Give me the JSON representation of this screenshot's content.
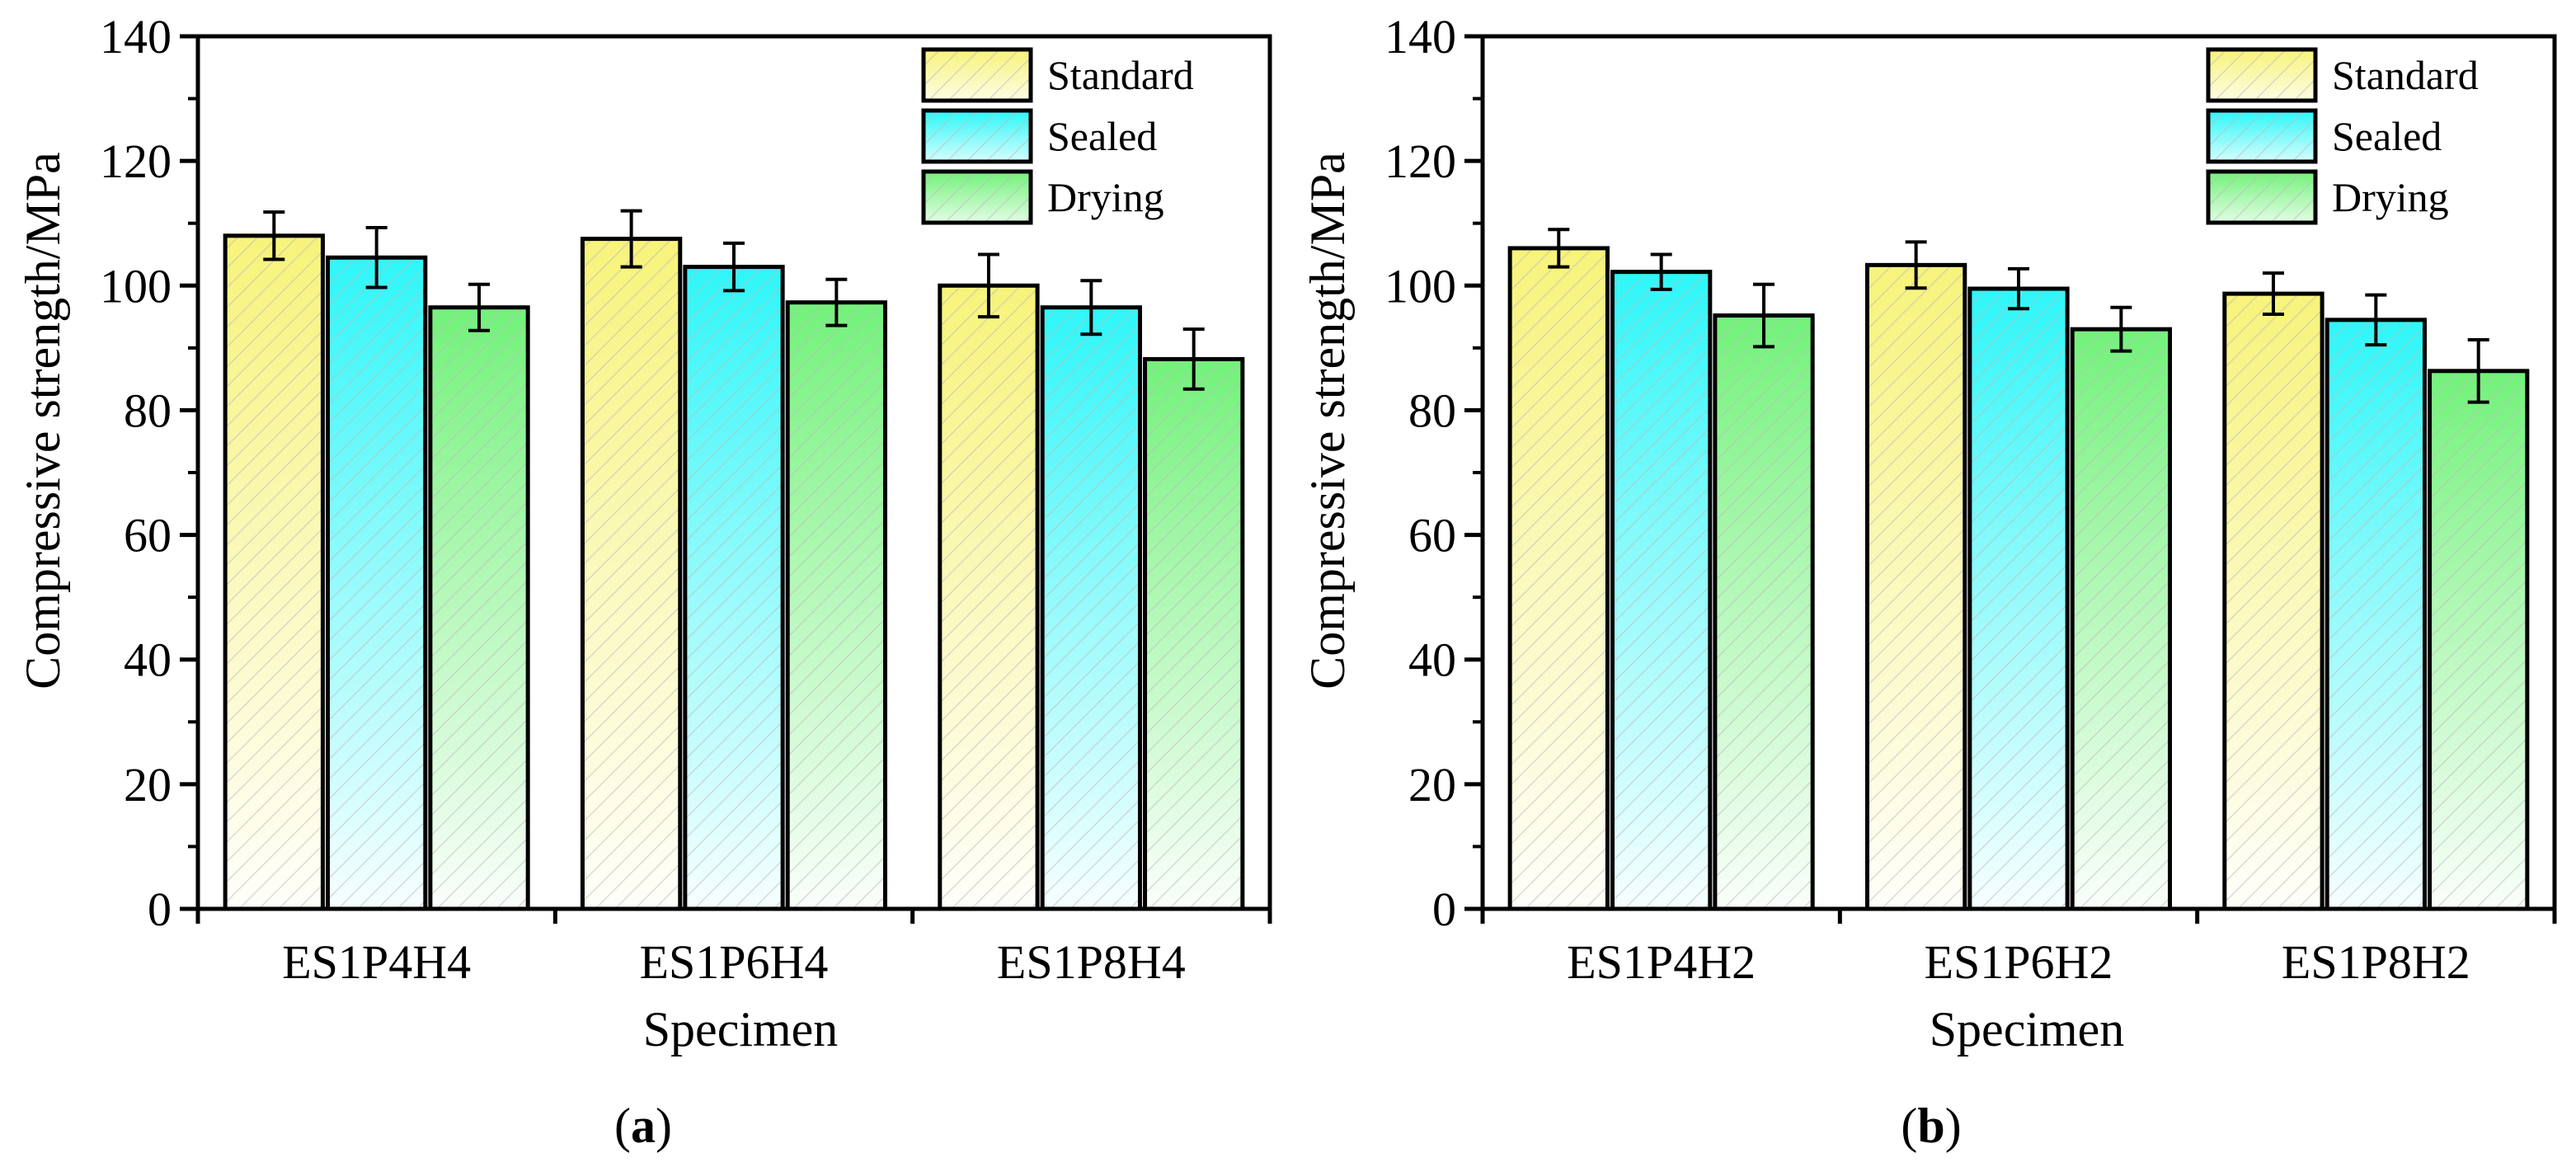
{
  "chart_data": [
    {
      "type": "bar",
      "panel_label": "a",
      "categories": [
        "ES1P4H4",
        "ES1P6H4",
        "ES1P8H4"
      ],
      "series": [
        {
          "name": "Standard",
          "values": [
            108,
            107.5,
            100
          ],
          "errors": [
            3.8,
            4.5,
            5.0
          ]
        },
        {
          "name": "Sealed",
          "values": [
            104.5,
            103,
            96.5
          ],
          "errors": [
            4.8,
            3.8,
            4.3
          ]
        },
        {
          "name": "Drying",
          "values": [
            96.5,
            97.3,
            88.2
          ],
          "errors": [
            3.7,
            3.7,
            4.8
          ]
        }
      ],
      "xlabel": "Specimen",
      "ylabel": "Compressive strength/MPa",
      "ylim": [
        0,
        140
      ],
      "yticks": [
        0,
        20,
        40,
        60,
        80,
        100,
        120,
        140
      ],
      "legend_position": "top-right"
    },
    {
      "type": "bar",
      "panel_label": "b",
      "categories": [
        "ES1P4H2",
        "ES1P6H2",
        "ES1P8H2"
      ],
      "series": [
        {
          "name": "Standard",
          "values": [
            106,
            103.3,
            98.7
          ],
          "errors": [
            3.0,
            3.7,
            3.3
          ]
        },
        {
          "name": "Sealed",
          "values": [
            102.2,
            99.5,
            94.5
          ],
          "errors": [
            2.8,
            3.2,
            4.0
          ]
        },
        {
          "name": "Drying",
          "values": [
            95.2,
            93,
            86.3
          ],
          "errors": [
            5.0,
            3.5,
            5.0
          ]
        }
      ],
      "xlabel": "Specimen",
      "ylabel": "Compressive strength/MPa",
      "ylim": [
        0,
        140
      ],
      "yticks": [
        0,
        20,
        40,
        60,
        80,
        100,
        120,
        140
      ],
      "legend_position": "top-right"
    }
  ],
  "colors": {
    "Standard": "#f7f37a",
    "Sealed": "#2ef6f8",
    "Drying": "#72f27a",
    "axis": "#000000"
  }
}
